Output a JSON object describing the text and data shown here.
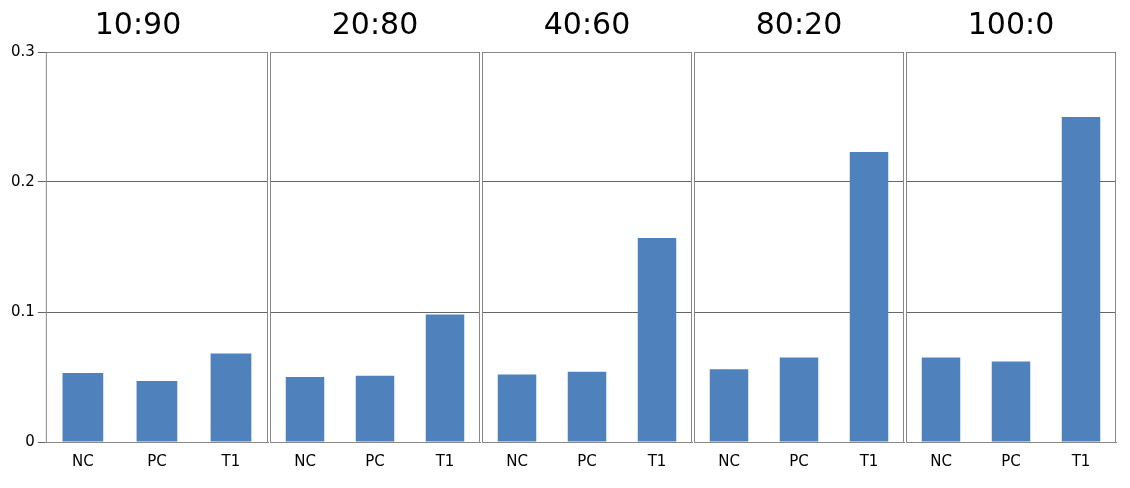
{
  "chart_data": [
    {
      "type": "bar",
      "title": "10:90",
      "categories": [
        "NC",
        "PC",
        "T1"
      ],
      "values": [
        0.053,
        0.047,
        0.068
      ],
      "color": "#4f81bd",
      "ylim": [
        0,
        0.3
      ],
      "yticks": [
        0,
        0.1,
        0.2,
        0.3
      ],
      "grid": "y"
    },
    {
      "type": "bar",
      "title": "20:80",
      "categories": [
        "NC",
        "PC",
        "T1"
      ],
      "values": [
        0.05,
        0.051,
        0.098
      ],
      "color": "#4f81bd",
      "ylim": [
        0,
        0.3
      ],
      "yticks": [
        0,
        0.1,
        0.2,
        0.3
      ],
      "grid": "y",
      "tick_labels": "x"
    },
    {
      "type": "bar",
      "title": "40:60",
      "categories": [
        "NC",
        "PC",
        "T1"
      ],
      "values": [
        0.052,
        0.054,
        0.157
      ],
      "color": "#4f81bd",
      "ylim": [
        0,
        0.3
      ],
      "yticks": [
        0,
        0.1,
        0.2,
        0.3
      ],
      "grid": "y",
      "tick_labels": "x"
    },
    {
      "type": "bar",
      "title": "80:20",
      "categories": [
        "NC",
        "PC",
        "T1"
      ],
      "values": [
        0.056,
        0.065,
        0.223
      ],
      "color": "#4f81bd",
      "ylim": [
        0,
        0.3
      ],
      "yticks": [
        0,
        0.1,
        0.2,
        0.3
      ],
      "grid": "y",
      "tick_labels": "x"
    },
    {
      "type": "bar",
      "title": "100:0",
      "categories": [
        "NC",
        "PC",
        "T1"
      ],
      "values": [
        0.065,
        0.062,
        0.25
      ],
      "color": "#4f81bd",
      "ylim": [
        0,
        0.3
      ],
      "yticks": [
        0,
        0.1,
        0.2,
        0.3
      ],
      "grid": "y",
      "tick_labels": "x"
    }
  ]
}
